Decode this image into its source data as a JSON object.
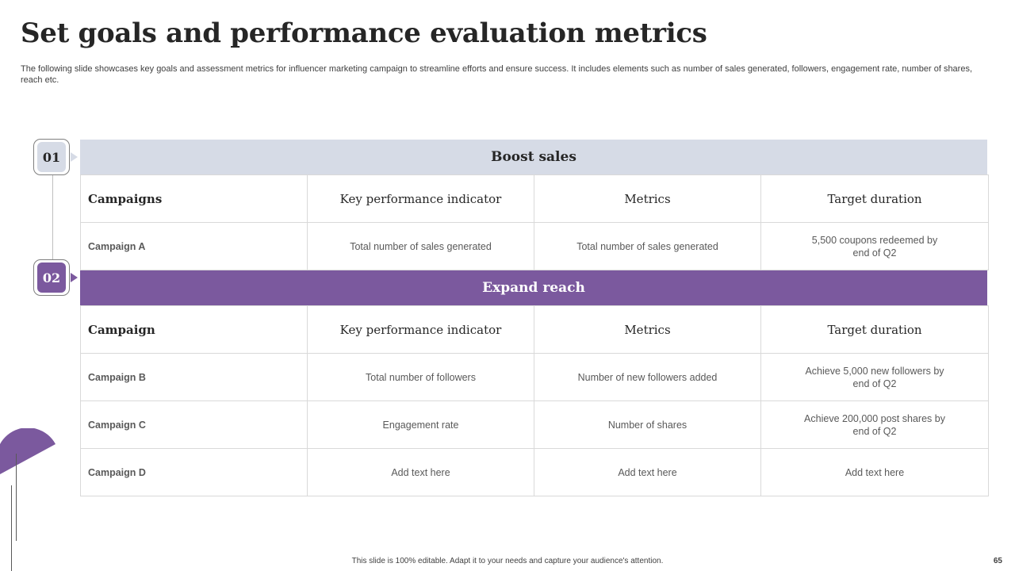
{
  "title": "Set goals and performance evaluation metrics",
  "subtitle": "The following slide showcases key goals and assessment metrics for influencer marketing campaign to streamline efforts and ensure success. It includes elements such as number of sales generated, followers, engagement rate, number of shares, reach etc.",
  "colors": {
    "accent": "#7b599e",
    "light": "#d6dbe6",
    "border": "#d9d9d9"
  },
  "sections": [
    {
      "step": "01",
      "heading": "Boost sales",
      "columns": [
        "Campaigns",
        "Key performance indicator",
        "Metrics",
        "Target duration"
      ],
      "rows": [
        [
          "Campaign A",
          "Total number of sales generated",
          "Total number of sales generated",
          "5,500 coupons redeemed by end of Q2"
        ]
      ]
    },
    {
      "step": "02",
      "heading": "Expand reach",
      "columns": [
        "Campaign",
        "Key performance indicator",
        "Metrics",
        "Target duration"
      ],
      "rows": [
        [
          "Campaign B",
          "Total number of followers",
          "Number of new followers added",
          "Achieve 5,000 new followers by end of Q2"
        ],
        [
          "Campaign C",
          "Engagement rate",
          "Number of shares",
          "Achieve 200,000 post shares by end of Q2"
        ],
        [
          "Campaign D",
          "Add text here",
          "Add text here",
          "Add text here"
        ]
      ]
    }
  ],
  "footer": "This slide is 100% editable. Adapt it to your needs and capture your audience's attention.",
  "page_number": "65"
}
